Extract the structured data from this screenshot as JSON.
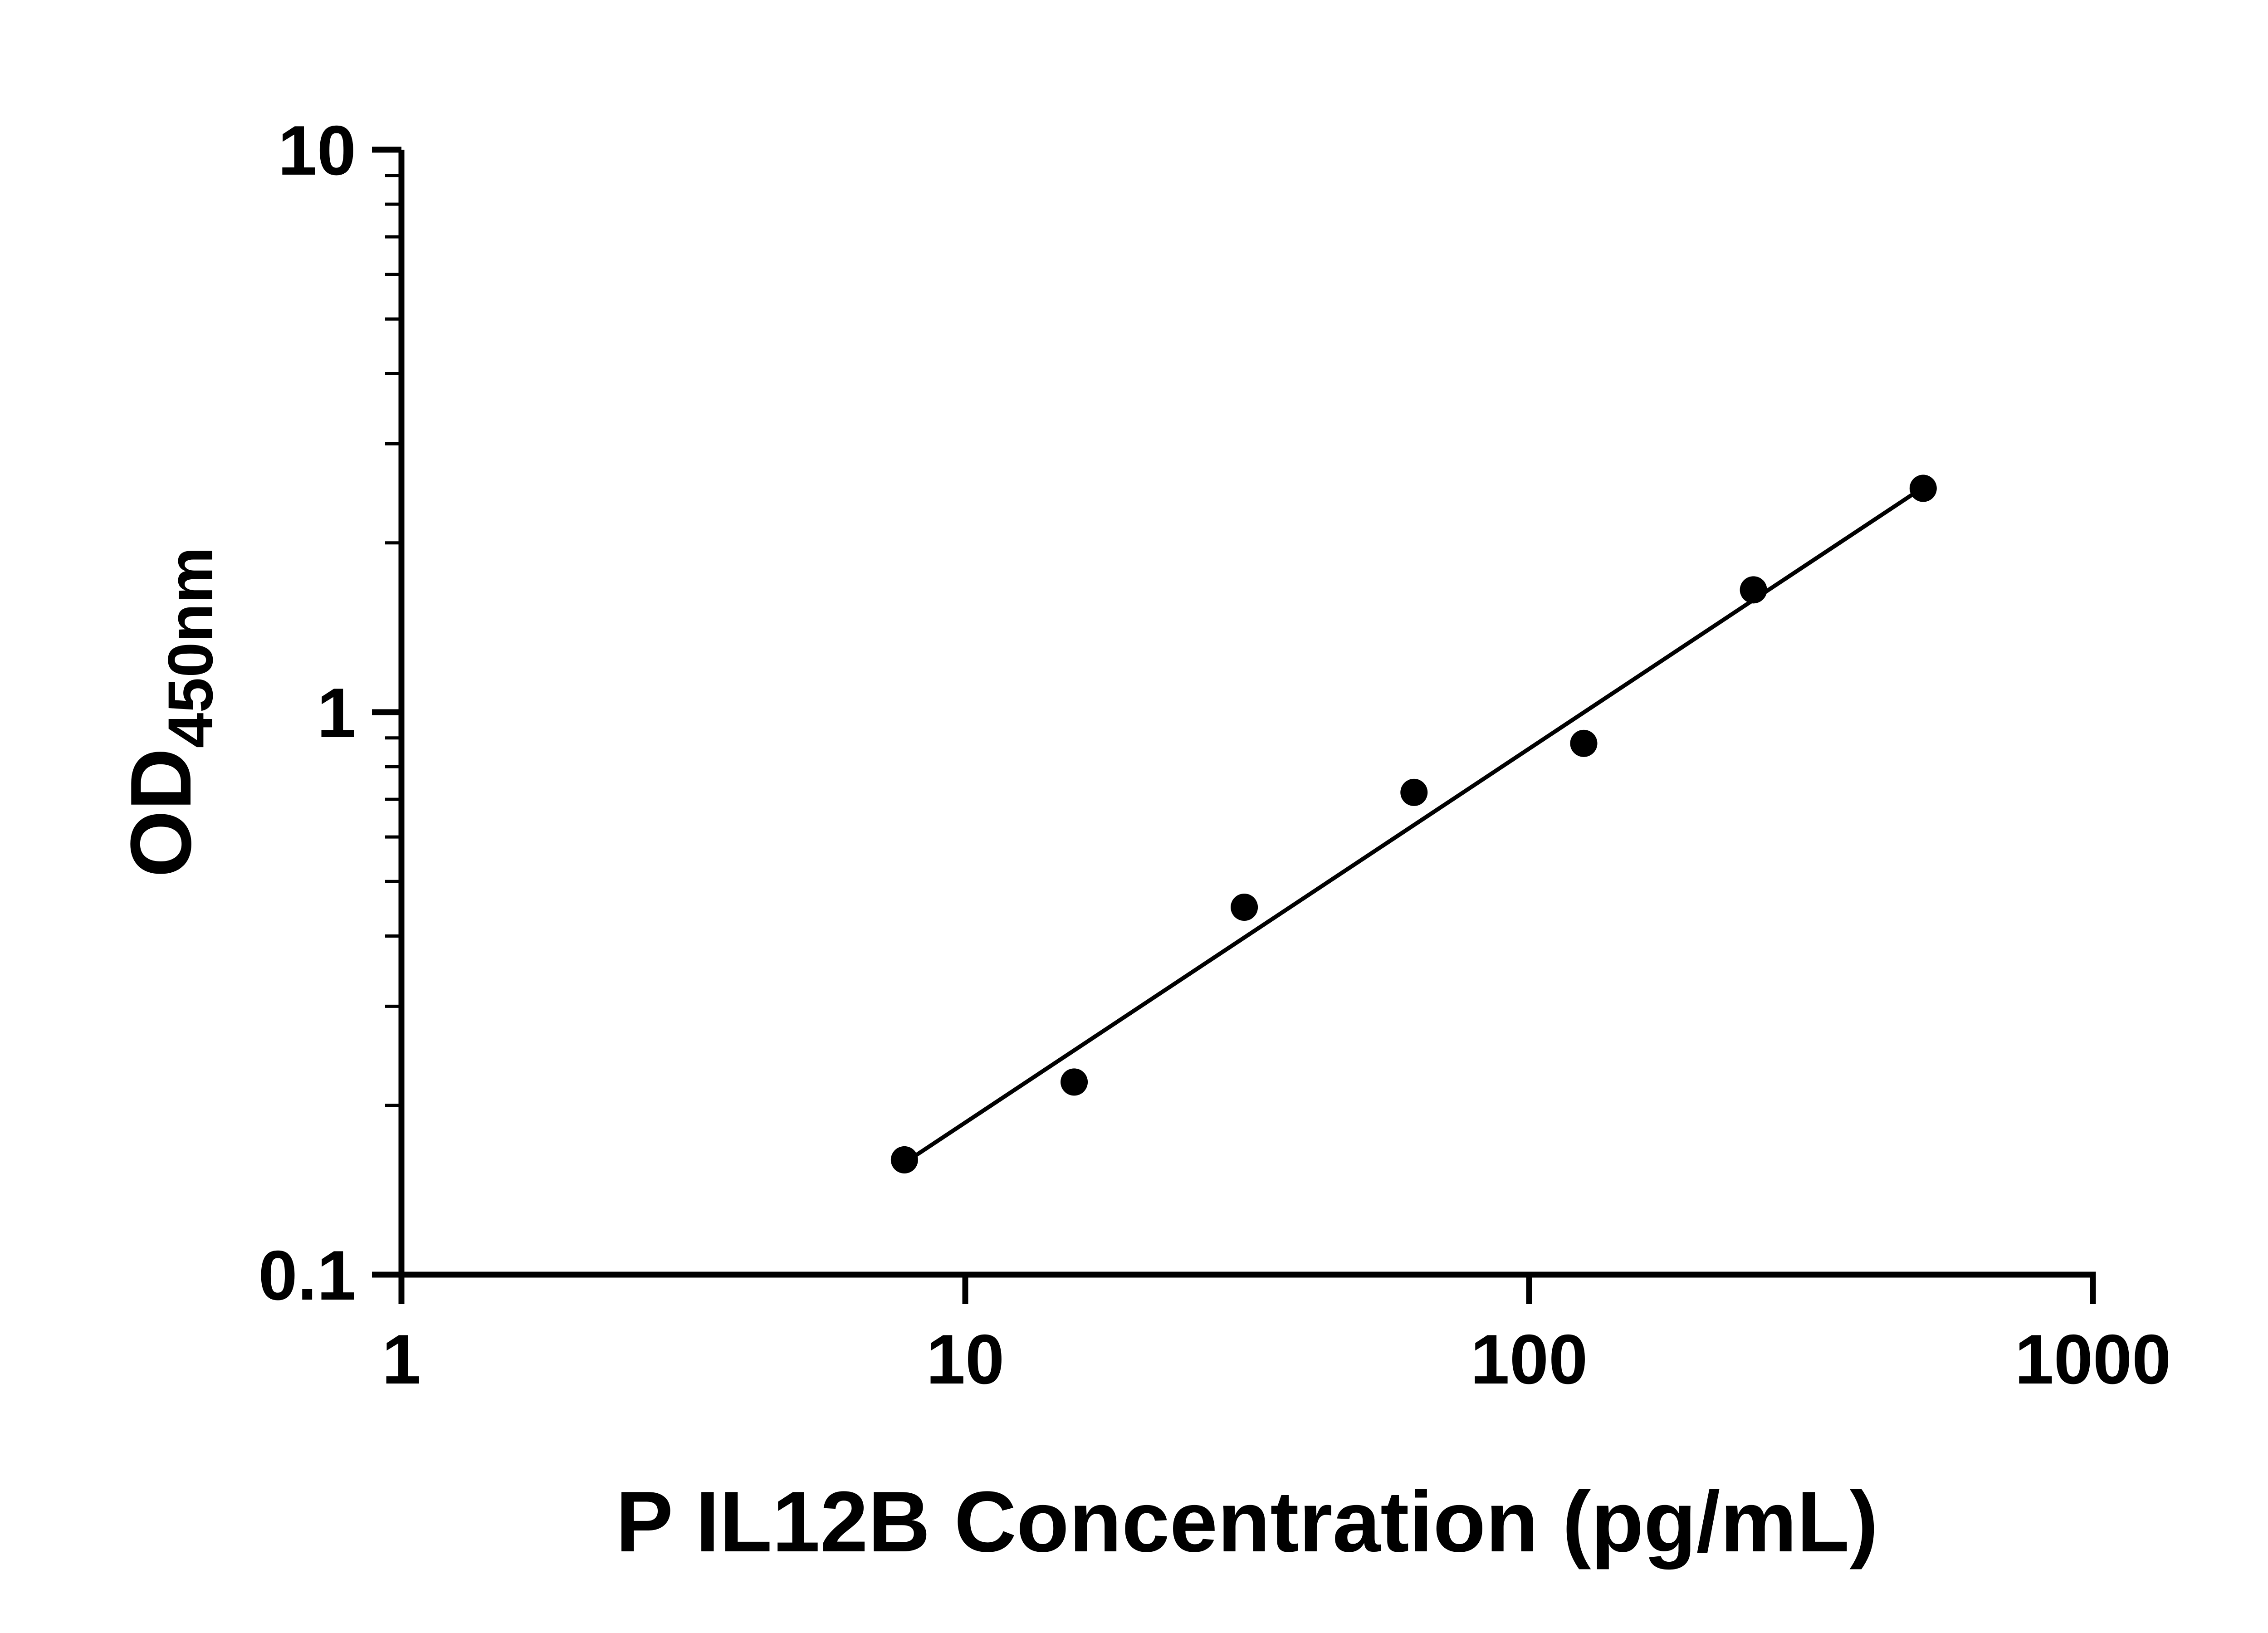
{
  "chart_data": {
    "type": "scatter",
    "title": "",
    "xlabel": "P IL12B Concentration (pg/mL)",
    "ylabel": "OD450nm",
    "ylabel_main": "OD",
    "ylabel_sub": "450nm",
    "x_scale": "log",
    "y_scale": "log",
    "xlim": [
      1,
      1000
    ],
    "ylim": [
      0.1,
      10
    ],
    "x_ticks": [
      {
        "value": 1,
        "label": "1"
      },
      {
        "value": 10,
        "label": "10"
      },
      {
        "value": 100,
        "label": "100"
      },
      {
        "value": 1000,
        "label": "1000"
      }
    ],
    "y_ticks": [
      {
        "value": 0.1,
        "label": "0.1"
      },
      {
        "value": 1,
        "label": "1"
      },
      {
        "value": 10,
        "label": "10"
      }
    ],
    "y_minor_ticks": true,
    "grid": false,
    "legend": false,
    "marker_color": "#000000",
    "line_color": "#000000",
    "axis_color": "#000000",
    "series": [
      {
        "name": "standard-curve",
        "x": [
          7.8,
          15.6,
          31.25,
          62.5,
          125,
          250,
          500
        ],
        "y": [
          0.16,
          0.22,
          0.45,
          0.72,
          0.88,
          1.65,
          2.5
        ]
      }
    ],
    "trend_line": {
      "x1": 7.8,
      "y1": 0.158,
      "x2": 500,
      "y2": 2.51
    }
  }
}
